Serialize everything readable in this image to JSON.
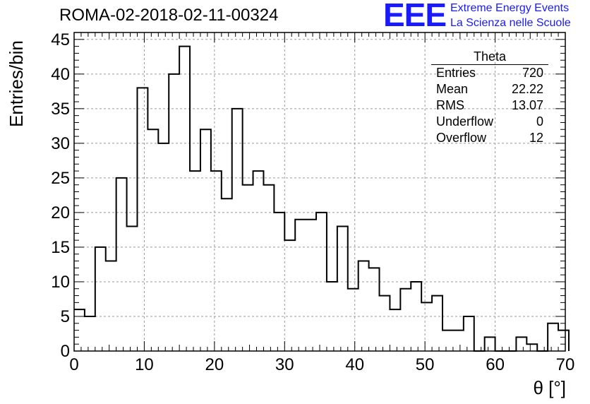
{
  "header": {
    "title": "ROMA-02-2018-02-11-00324",
    "logo_text": "EEE",
    "logo_line1": "Extreme Energy Events",
    "logo_line2": "La Scienza nelle Scuole"
  },
  "stats_box": {
    "title": "Theta",
    "rows": [
      {
        "label": "Entries",
        "value": "720"
      },
      {
        "label": "Mean",
        "value": "22.22"
      },
      {
        "label": "RMS",
        "value": "13.07"
      },
      {
        "label": "Underflow",
        "value": "0"
      },
      {
        "label": "Overflow",
        "value": "12"
      }
    ]
  },
  "colors": {
    "line": "#000000",
    "grid": "#9a9a9a",
    "logo": "#1a1aff"
  },
  "chart_data": {
    "type": "bar",
    "style": "step-histogram",
    "bin_width": 1.5,
    "x_start": 0,
    "values": [
      6,
      5,
      15,
      13,
      25,
      18,
      38,
      32,
      30,
      40,
      44,
      26,
      32,
      26,
      22,
      35,
      24,
      26,
      24,
      20,
      16,
      19,
      19,
      20,
      10,
      18,
      9,
      13,
      12,
      8,
      6,
      9,
      10,
      7,
      8,
      3,
      3,
      5,
      0,
      2,
      0,
      0,
      2,
      1,
      0,
      4,
      3
    ],
    "xlabel": "θ [°]",
    "ylabel": "Entries/bin",
    "xlim": [
      0,
      70
    ],
    "ylim": [
      0,
      46
    ],
    "xticks": [
      0,
      10,
      20,
      30,
      40,
      50,
      60,
      70
    ],
    "yticks": [
      0,
      5,
      10,
      15,
      20,
      25,
      30,
      35,
      40,
      45
    ],
    "grid": true,
    "legend": "top-right"
  }
}
